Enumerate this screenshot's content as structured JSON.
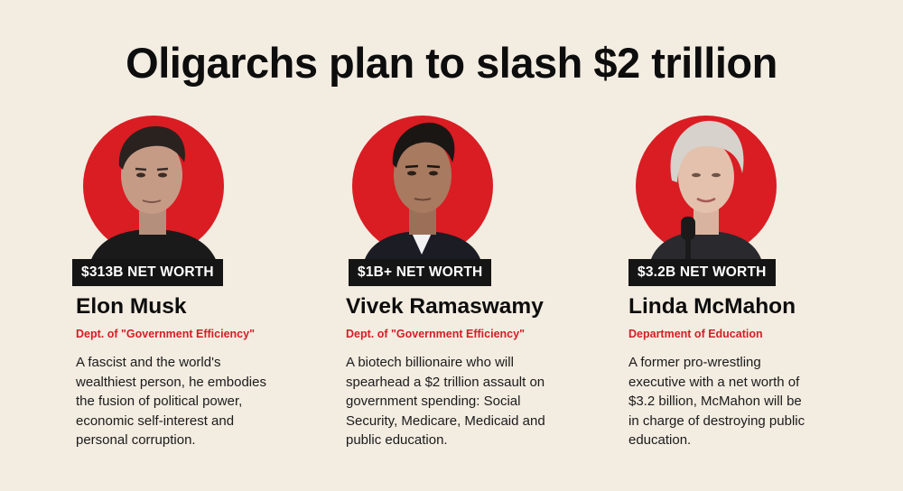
{
  "title": "Oligarchs plan to slash $2 trillion",
  "people": [
    {
      "net_worth": "$313B NET WORTH",
      "name": "Elon Musk",
      "department": "Dept. of \"Government Efficiency\"",
      "description_lines": [
        "A fascist and the world's",
        "wealthiest person, he embodies",
        "the fusion of political power,",
        "economic self-interest and",
        "personal corruption."
      ]
    },
    {
      "net_worth": "$1B+ NET WORTH",
      "name": "Vivek Ramaswamy",
      "department": "Dept. of \"Government Efficiency\"",
      "description_lines": [
        "A biotech billionaire who will",
        "spearhead a $2 trillion assault on",
        "government spending: Social",
        "Security, Medicare, Medicaid and",
        "public education."
      ]
    },
    {
      "net_worth": "$3.2B NET WORTH",
      "name": "Linda McMahon",
      "department": "Department of Education",
      "description_lines": [
        "A former pro-wrestling",
        "executive with a net worth of",
        "$3.2 billion, McMahon will be",
        "in charge of destroying public",
        "education."
      ]
    }
  ],
  "colors": {
    "background": "#f3ece1",
    "accent_red": "#d21f26",
    "badge": "#151515"
  }
}
